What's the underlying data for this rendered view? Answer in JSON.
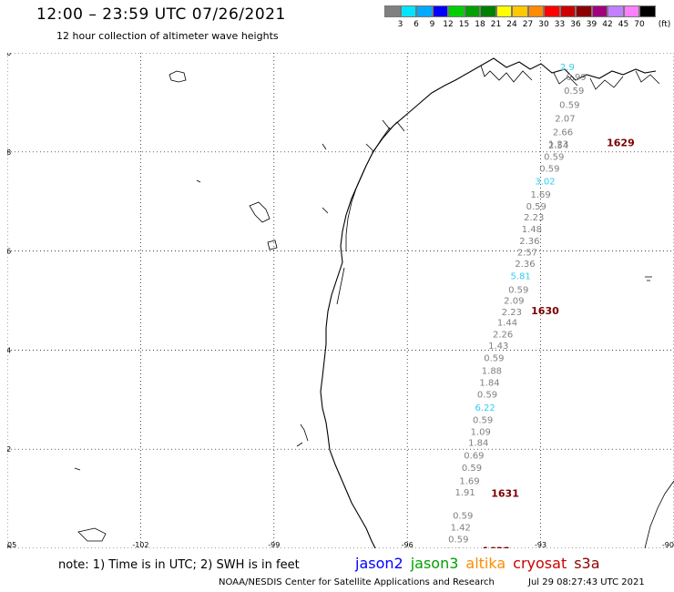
{
  "title": "12:00 – 23:59 UTC 07/26/2021",
  "subtitle": "12 hour collection of altimeter wave heights",
  "colorbar": {
    "unit": "(ft)",
    "labels": [
      "3",
      "6",
      "9",
      "12",
      "15",
      "18",
      "21",
      "24",
      "27",
      "30",
      "33",
      "36",
      "39",
      "42",
      "45",
      "70"
    ],
    "colors": [
      "#808080",
      "#00e5ff",
      "#00aaff",
      "#0000ff",
      "#00d000",
      "#00a000",
      "#008000",
      "#ffff00",
      "#ffc800",
      "#ff8c00",
      "#ff0000",
      "#cc0000",
      "#8b0000",
      "#a00080",
      "#c080ff",
      "#ff80ff",
      "#000000"
    ]
  },
  "map": {
    "lon_range": [
      -105,
      -90
    ],
    "lat_range": [
      20,
      30
    ],
    "x_ticks": [
      "-105",
      "-102",
      "-99",
      "-96",
      "-93",
      "-90"
    ],
    "y_ticks": [
      "30",
      "28",
      "26",
      "24",
      "22",
      "20"
    ]
  },
  "observations": [
    {
      "v": "2.9",
      "lon": -92.4,
      "lat": 29.65,
      "color": "#33ccee"
    },
    {
      "v": "0.99",
      "lon": -92.2,
      "lat": 29.45,
      "color": "#808080"
    },
    {
      "v": "0.59",
      "lon": -92.25,
      "lat": 29.17,
      "color": "#808080"
    },
    {
      "v": "0.59",
      "lon": -92.35,
      "lat": 28.89,
      "color": "#808080"
    },
    {
      "v": "2.07",
      "lon": -92.45,
      "lat": 28.61,
      "color": "#808080"
    },
    {
      "v": "2.66",
      "lon": -92.5,
      "lat": 28.34,
      "color": "#808080"
    },
    {
      "v": "1.23",
      "lon": -92.6,
      "lat": 28.1,
      "color": "#808080"
    },
    {
      "v": "2.54",
      "lon": -92.6,
      "lat": 28.07,
      "color": "#808080"
    },
    {
      "v": "0.59",
      "lon": -92.7,
      "lat": 27.84,
      "color": "#808080"
    },
    {
      "v": "0.59",
      "lon": -92.8,
      "lat": 27.6,
      "color": "#808080"
    },
    {
      "v": "3.02",
      "lon": -92.9,
      "lat": 27.34,
      "color": "#33ccee"
    },
    {
      "v": "1.69",
      "lon": -93.0,
      "lat": 27.08,
      "color": "#808080"
    },
    {
      "v": "0.59",
      "lon": -93.1,
      "lat": 26.84,
      "color": "#808080"
    },
    {
      "v": "2.23",
      "lon": -93.15,
      "lat": 26.62,
      "color": "#808080"
    },
    {
      "v": "1.48",
      "lon": -93.2,
      "lat": 26.38,
      "color": "#808080"
    },
    {
      "v": "2.36",
      "lon": -93.25,
      "lat": 26.14,
      "color": "#808080"
    },
    {
      "v": "2.57",
      "lon": -93.3,
      "lat": 25.91,
      "color": "#808080"
    },
    {
      "v": "2.36",
      "lon": -93.35,
      "lat": 25.68,
      "color": "#808080"
    },
    {
      "v": "5.81",
      "lon": -93.45,
      "lat": 25.43,
      "color": "#33ccee"
    },
    {
      "v": "0.59",
      "lon": -93.5,
      "lat": 25.16,
      "color": "#808080"
    },
    {
      "v": "2.09",
      "lon": -93.6,
      "lat": 24.94,
      "color": "#808080"
    },
    {
      "v": "2.23",
      "lon": -93.65,
      "lat": 24.71,
      "color": "#808080"
    },
    {
      "v": "1.44",
      "lon": -93.75,
      "lat": 24.49,
      "color": "#808080"
    },
    {
      "v": "2.26",
      "lon": -93.85,
      "lat": 24.26,
      "color": "#808080"
    },
    {
      "v": "1.43",
      "lon": -93.95,
      "lat": 24.03,
      "color": "#808080"
    },
    {
      "v": "0.59",
      "lon": -94.05,
      "lat": 23.78,
      "color": "#808080"
    },
    {
      "v": "1.88",
      "lon": -94.1,
      "lat": 23.52,
      "color": "#808080"
    },
    {
      "v": "1.84",
      "lon": -94.15,
      "lat": 23.28,
      "color": "#808080"
    },
    {
      "v": "0.59",
      "lon": -94.2,
      "lat": 23.04,
      "color": "#808080"
    },
    {
      "v": "6.22",
      "lon": -94.25,
      "lat": 22.78,
      "color": "#33ccee"
    },
    {
      "v": "0.59",
      "lon": -94.3,
      "lat": 22.53,
      "color": "#808080"
    },
    {
      "v": "1.09",
      "lon": -94.35,
      "lat": 22.29,
      "color": "#808080"
    },
    {
      "v": "1.84",
      "lon": -94.4,
      "lat": 22.07,
      "color": "#808080"
    },
    {
      "v": "0.69",
      "lon": -94.5,
      "lat": 21.81,
      "color": "#808080"
    },
    {
      "v": "0.59",
      "lon": -94.55,
      "lat": 21.56,
      "color": "#808080"
    },
    {
      "v": "1.69",
      "lon": -94.6,
      "lat": 21.3,
      "color": "#808080"
    },
    {
      "v": "1.91",
      "lon": -94.7,
      "lat": 21.07,
      "color": "#808080"
    },
    {
      "v": "0.59",
      "lon": -94.75,
      "lat": 20.6,
      "color": "#808080"
    },
    {
      "v": "1.42",
      "lon": -94.8,
      "lat": 20.36,
      "color": "#808080"
    },
    {
      "v": "0.59",
      "lon": -94.85,
      "lat": 20.12,
      "color": "#808080"
    },
    {
      "v": "2.48",
      "lon": -94.9,
      "lat": 19.88,
      "color": "#808080"
    }
  ],
  "pass_labels": [
    {
      "text": "1629",
      "lon": -91.2,
      "lat": 28.12
    },
    {
      "text": "1630",
      "lon": -92.9,
      "lat": 24.72
    },
    {
      "text": "1631",
      "lon": -93.8,
      "lat": 21.04
    },
    {
      "text": "1632",
      "lon": -94.0,
      "lat": 19.88
    }
  ],
  "note": "note:  1) Time is in UTC;  2) SWH is in feet",
  "missions": [
    {
      "name": "jason2",
      "color": "#0000ff"
    },
    {
      "name": "jason3",
      "color": "#00a000"
    },
    {
      "name": "altika",
      "color": "#ff8c00"
    },
    {
      "name": "cryosat",
      "color": "#cc0000"
    },
    {
      "name": "s3a",
      "color": "#8b0000"
    }
  ],
  "footer": "NOAA/NESDIS Center for Satellite Applications and Research",
  "footer_date": "Jul 29 08:27:43 UTC 2021"
}
